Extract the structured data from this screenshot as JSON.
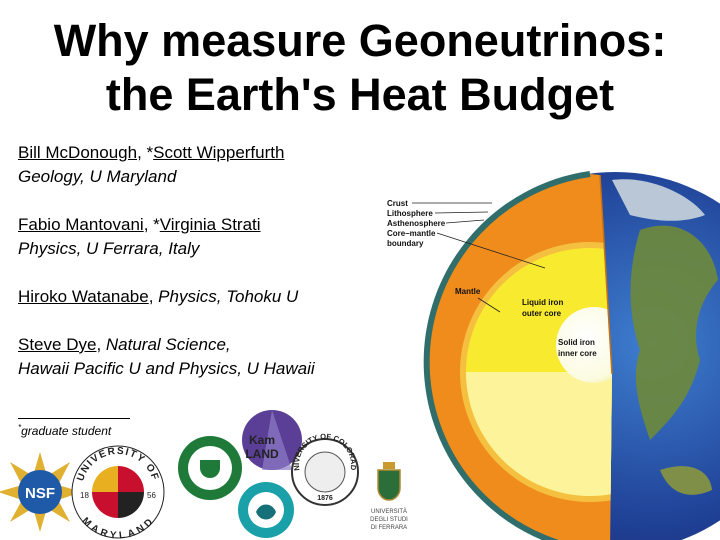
{
  "title": [
    "Why measure Geoneutrinos:",
    "the Earth's Heat Budget"
  ],
  "authors": [
    {
      "lines": [
        [
          {
            "text": "Bill McDonough",
            "link": true
          },
          {
            "text": ", *"
          },
          {
            "text": "Scott Wipperfurth",
            "link": true
          }
        ],
        [
          {
            "text": "Geology, U Maryland",
            "italic": true
          }
        ]
      ]
    },
    {
      "lines": [
        [
          {
            "text": "Fabio Mantovani",
            "link": true
          },
          {
            "text": ", *"
          },
          {
            "text": "Virginia Strati",
            "link": true
          }
        ],
        [
          {
            "text": "Physics, U Ferrara, Italy",
            "italic": true
          }
        ]
      ]
    },
    {
      "lines": [
        [
          {
            "text": "Hiroko Watanabe",
            "link": true
          },
          {
            "text": ", "
          },
          {
            "text": "Physics, Tohoku U",
            "italic": true
          }
        ]
      ]
    },
    {
      "lines": [
        [
          {
            "text": "Steve Dye",
            "link": true
          },
          {
            "text": ", "
          },
          {
            "text": "Natural Science,",
            "italic": true
          }
        ],
        [
          {
            "text": "Hawaii Pacific U and Physics, U Hawaii",
            "italic": true
          }
        ]
      ]
    }
  ],
  "footnote": {
    "mark": "*",
    "text": "graduate student"
  },
  "earth_labels": {
    "crust": "Crust",
    "lithosphere": "Lithosphere",
    "asthenosphere": "Asthenosphere",
    "core_mantle": [
      "Core–mantle",
      "boundary"
    ],
    "mantle": "Mantle",
    "outer_core": [
      "Liquid iron",
      "outer core"
    ],
    "inner_core": [
      "Solid iron",
      "inner core"
    ]
  },
  "logos": {
    "nsf": "NSF",
    "maryland": {
      "top": "UNIVERSITY OF",
      "bottom": "MARYLAND",
      "left": "18",
      "right": "56"
    },
    "kamland": [
      "Kam",
      "LAND"
    ],
    "colorado": {
      "ring": "UNIVERSITY OF COLORADO",
      "year": "1876"
    },
    "ferrara": [
      "UNIVERSITÀ",
      "DEGLI STUDI",
      "DI FERRARA"
    ]
  }
}
